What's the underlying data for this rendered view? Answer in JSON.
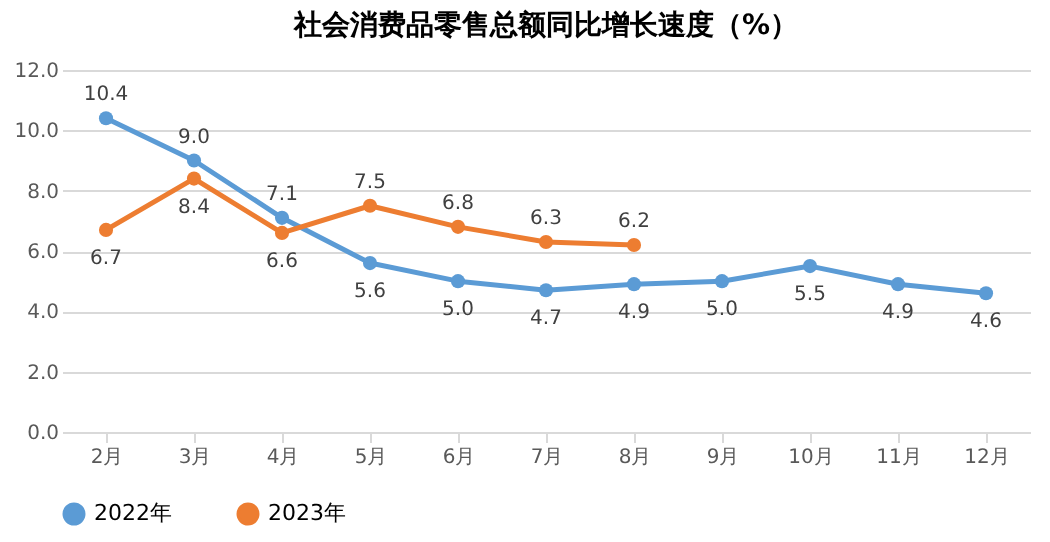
{
  "chart_data": {
    "type": "line",
    "title": "社会消费品零售总额同比增长速度（%）",
    "categories": [
      "2月",
      "3月",
      "4月",
      "5月",
      "6月",
      "7月",
      "8月",
      "9月",
      "10月",
      "11月",
      "12月"
    ],
    "series": [
      {
        "name": "2022年",
        "color": "#5b9bd5",
        "values": [
          10.4,
          9.0,
          7.1,
          5.6,
          5.0,
          4.7,
          4.9,
          5.0,
          5.5,
          4.9,
          4.6
        ],
        "value_labels": [
          "10.4",
          "9.0",
          "7.1",
          "5.6",
          "5.0",
          "4.7",
          "4.9",
          "5.0",
          "5.5",
          "4.9",
          "4.6"
        ]
      },
      {
        "name": "2023年",
        "color": "#ed7d31",
        "values": [
          6.7,
          8.4,
          6.6,
          7.5,
          6.8,
          6.3,
          6.2,
          null,
          null,
          null,
          null
        ],
        "value_labels": [
          "6.7",
          "8.4",
          "6.6",
          "7.5",
          "6.8",
          "6.3",
          "6.2",
          null,
          null,
          null,
          null
        ]
      }
    ],
    "ylim": [
      0,
      12
    ],
    "yticks": [
      {
        "value": 0,
        "label": "0.0"
      },
      {
        "value": 2,
        "label": "2.0"
      },
      {
        "value": 4,
        "label": "4.0"
      },
      {
        "value": 6,
        "label": "6.0"
      },
      {
        "value": 8,
        "label": "8.0"
      },
      {
        "value": 10,
        "label": "10.0"
      },
      {
        "value": 12,
        "label": "12.0"
      }
    ],
    "grid": "y",
    "legend": "bottom",
    "marker": "circle",
    "line_style": "solid"
  }
}
